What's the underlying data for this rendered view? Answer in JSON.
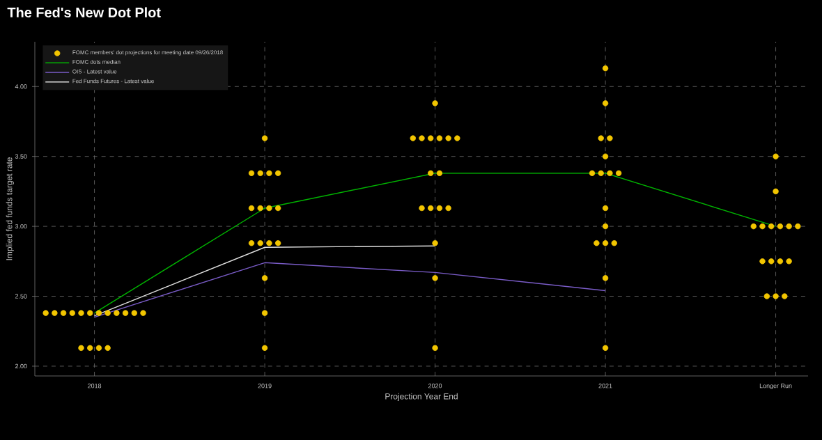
{
  "chart_data": {
    "type": "scatter",
    "title": "The Fed's New Dot Plot",
    "xlabel": "Projection Year End",
    "ylabel": "Implied fed funds target rate",
    "categories": [
      "2018",
      "2019",
      "2020",
      "2021",
      "Longer Run"
    ],
    "ylim": [
      1.93,
      4.32
    ],
    "yticks": [
      {
        "value": 2,
        "label": "2.00"
      },
      {
        "value": 2.5,
        "label": "2.50"
      },
      {
        "value": 3,
        "label": "3.00"
      },
      {
        "value": 3.5,
        "label": "3.50"
      },
      {
        "value": 4,
        "label": "4.00"
      }
    ],
    "grid": true,
    "legend": "top left",
    "series": [
      {
        "name": "FOMC members' dot projections for meeting date 09/26/2018",
        "marker": "circle",
        "color": "#f2c500",
        "values": [
          2.38,
          3.63,
          3.88,
          4.13,
          3.5
        ]
      },
      {
        "marker": "circle",
        "color": "#f2c500",
        "values": [
          2.38,
          3.38,
          3.63,
          3.88,
          3.25
        ]
      },
      {
        "marker": "circle",
        "color": "#f2c500",
        "values": [
          2.38,
          3.38,
          3.63,
          3.63,
          3.0
        ]
      },
      {
        "marker": "circle",
        "color": "#f2c500",
        "values": [
          2.38,
          3.38,
          3.63,
          3.63,
          3.0
        ]
      },
      {
        "marker": "circle",
        "color": "#f2c500",
        "values": [
          2.38,
          3.38,
          3.63,
          3.5,
          3.0
        ]
      },
      {
        "marker": "circle",
        "color": "#f2c500",
        "values": [
          2.38,
          3.13,
          3.63,
          3.38,
          3.0
        ]
      },
      {
        "marker": "circle",
        "color": "#f2c500",
        "values": [
          2.38,
          3.13,
          3.63,
          3.38,
          3.0
        ]
      },
      {
        "marker": "circle",
        "color": "#f2c500",
        "values": [
          2.38,
          3.13,
          3.38,
          3.38,
          3.0
        ]
      },
      {
        "marker": "circle",
        "color": "#f2c500",
        "values": [
          2.38,
          3.13,
          3.38,
          3.38,
          2.75
        ]
      },
      {
        "marker": "circle",
        "color": "#f2c500",
        "values": [
          2.38,
          2.88,
          3.13,
          3.13,
          2.75
        ]
      },
      {
        "marker": "circle",
        "color": "#f2c500",
        "values": [
          2.38,
          2.88,
          3.13,
          3.0,
          2.75
        ]
      },
      {
        "marker": "circle",
        "color": "#f2c500",
        "values": [
          2.38,
          2.88,
          3.13,
          2.88,
          2.75
        ]
      },
      {
        "marker": "circle",
        "color": "#f2c500",
        "values": [
          2.13,
          2.88,
          3.13,
          2.88,
          2.5
        ]
      },
      {
        "marker": "circle",
        "color": "#f2c500",
        "values": [
          2.13,
          2.63,
          2.88,
          2.88,
          2.5
        ]
      },
      {
        "marker": "circle",
        "color": "#f2c500",
        "values": [
          2.13,
          2.38,
          2.63,
          2.63,
          2.5
        ]
      },
      {
        "marker": "circle",
        "color": "#f2c500",
        "values": [
          2.13,
          2.13,
          2.13,
          2.13,
          null
        ]
      },
      {
        "name": "FOMC dots median",
        "type": "line",
        "marker": "none",
        "line_style": "solid",
        "color": "#00b400",
        "values": [
          2.38,
          3.13,
          3.38,
          3.38,
          3.0
        ]
      },
      {
        "name": "OIS - Latest value",
        "type": "line",
        "marker": "none",
        "line_style": "solid",
        "color": "#7a5cc8",
        "values": [
          2.35,
          2.74,
          2.67,
          2.54,
          null
        ]
      },
      {
        "name": "Fed Funds Futures - Latest value",
        "type": "line",
        "marker": "none",
        "line_style": "solid",
        "color": "#e0e0e0",
        "values": [
          2.36,
          2.85,
          2.86,
          null,
          null
        ]
      }
    ]
  }
}
